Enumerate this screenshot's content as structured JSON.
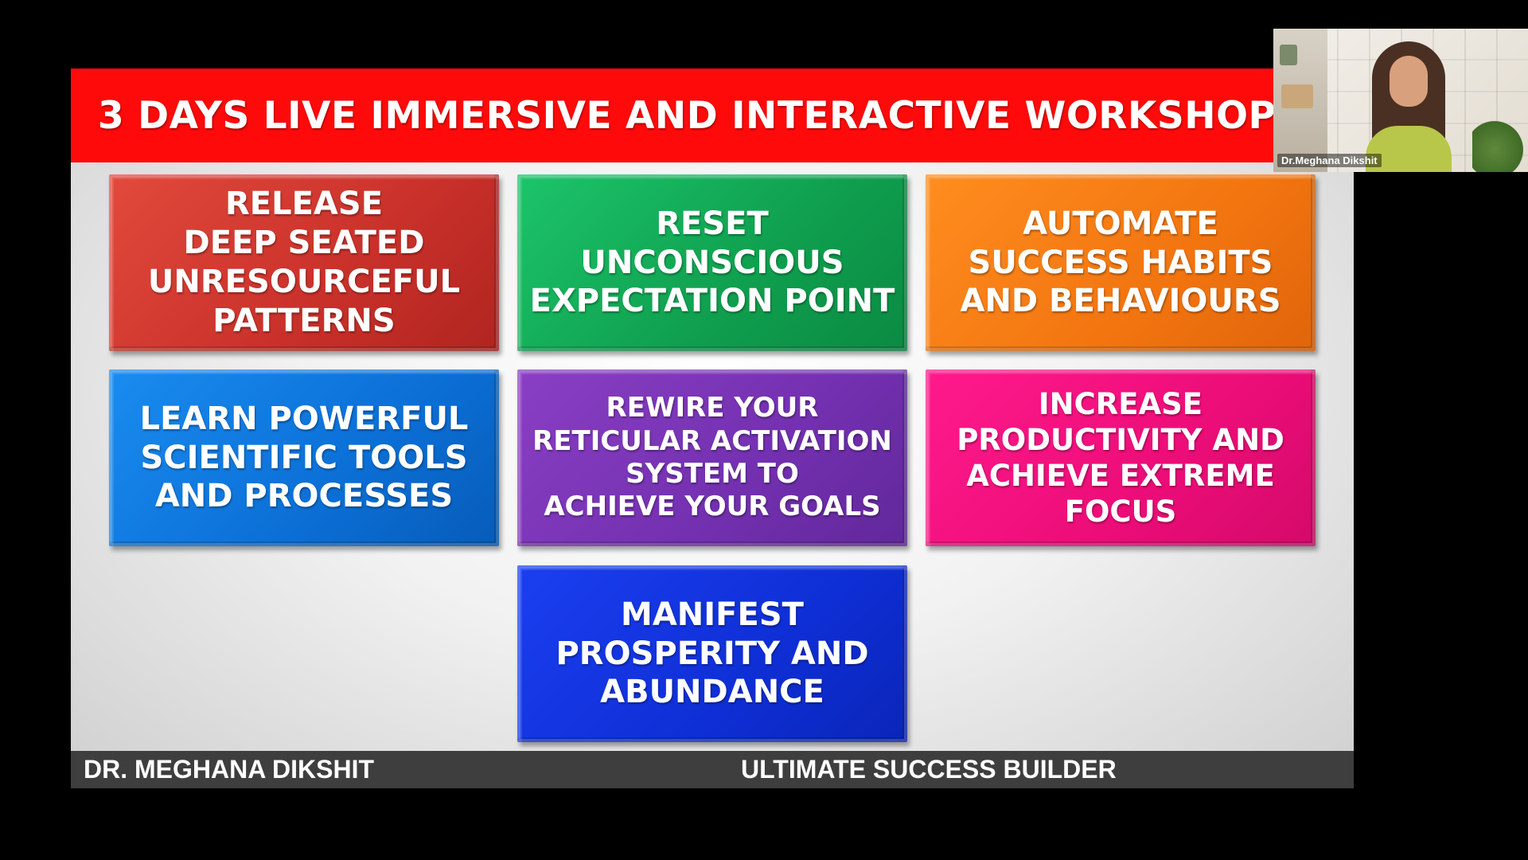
{
  "slide": {
    "title": "3 DAYS LIVE IMMERSIVE AND INTERACTIVE WORKSHOP",
    "tiles": [
      {
        "lines": [
          "RELEASE",
          "DEEP SEATED",
          "UNRESOURCEFUL",
          "PATTERNS"
        ],
        "color": "#c9302a"
      },
      {
        "lines": [
          "RESET",
          "UNCONSCIOUS",
          "EXPECTATION POINT"
        ],
        "color": "#0f9f4e"
      },
      {
        "lines": [
          "AUTOMATE",
          "SUCCESS HABITS",
          "AND BEHAVIOURS"
        ],
        "color": "#f27510"
      },
      {
        "lines": [
          "LEARN POWERFUL",
          "SCIENTIFIC TOOLS",
          "AND PROCESSES"
        ],
        "color": "#0b6fd6"
      },
      {
        "lines": [
          "REWIRE YOUR",
          "RETICULAR ACTIVATION",
          "SYSTEM TO",
          "ACHIEVE YOUR GOALS"
        ],
        "color": "#7330b0"
      },
      {
        "lines": [
          "INCREASE",
          "PRODUCTIVITY AND",
          "ACHIEVE EXTREME",
          "FOCUS"
        ],
        "color": "#ec0d78"
      },
      {
        "lines": [
          "MANIFEST",
          "PROSPERITY AND",
          "ABUNDANCE"
        ],
        "color": "#0f2fd6"
      }
    ],
    "footer": {
      "left": "DR. MEGHANA DIKSHIT",
      "right": "ULTIMATE SUCCESS BUILDER"
    }
  },
  "participant": {
    "name": "Dr.Meghana Dikshit"
  },
  "colors": {
    "title_bar": "#ff0a0a",
    "footer_bar": "#3e3e3e",
    "background": "#000000"
  }
}
